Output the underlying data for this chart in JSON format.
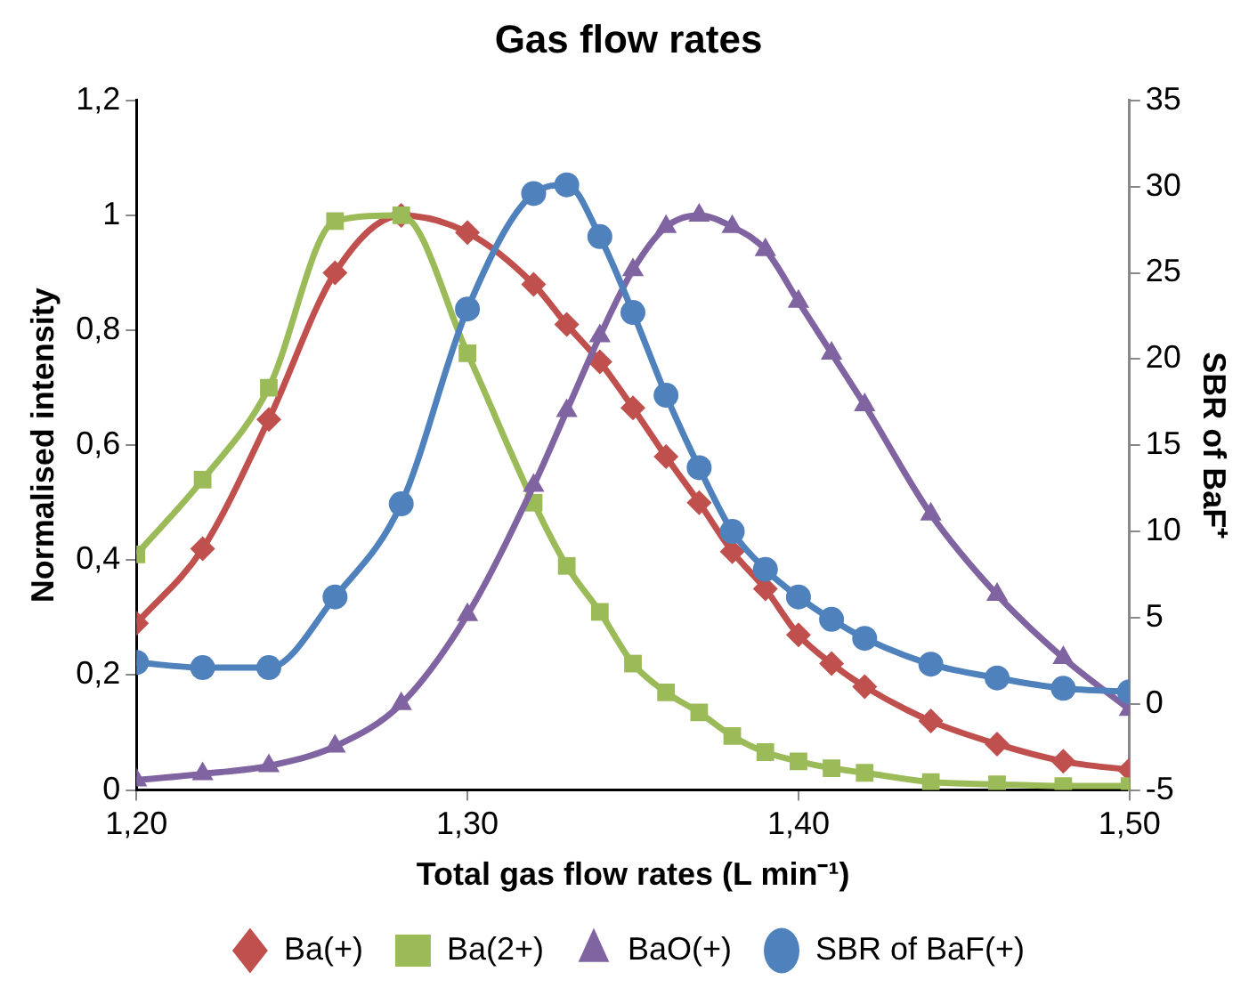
{
  "chart_data": {
    "type": "line",
    "title": "Gas flow rates",
    "xlabel": "Total gas flow rates (L min⁻¹)",
    "ylabel": "Normalised intensity",
    "y2label": "SBR of BaF⁺",
    "x": [
      1.2,
      1.22,
      1.24,
      1.26,
      1.28,
      1.3,
      1.32,
      1.33,
      1.34,
      1.35,
      1.36,
      1.37,
      1.38,
      1.39,
      1.4,
      1.41,
      1.42,
      1.44,
      1.46,
      1.48,
      1.5
    ],
    "series": [
      {
        "name": "Ba(+)",
        "color": "#c0504d",
        "marker": "diamond",
        "values": [
          0.29,
          0.42,
          0.645,
          0.9,
          1.0,
          0.97,
          0.88,
          0.81,
          0.745,
          0.665,
          0.58,
          0.5,
          0.415,
          0.35,
          0.27,
          0.22,
          0.18,
          0.12,
          0.08,
          0.05,
          0.035
        ]
      },
      {
        "name": "Ba(2+)",
        "color": "#9bbb59",
        "marker": "square",
        "values": [
          0.41,
          0.54,
          0.7,
          0.99,
          1.0,
          0.76,
          0.5,
          0.39,
          0.31,
          0.22,
          0.17,
          0.135,
          0.094,
          0.066,
          0.05,
          0.038,
          0.03,
          0.014,
          0.01,
          0.007,
          0.007
        ]
      },
      {
        "name": "BaO(+)",
        "color": "#8064a2",
        "marker": "triangle",
        "values": [
          0.017,
          0.028,
          0.042,
          0.076,
          0.15,
          0.305,
          0.53,
          0.66,
          0.79,
          0.905,
          0.98,
          1.0,
          0.98,
          0.94,
          0.85,
          0.76,
          0.67,
          0.48,
          0.34,
          0.23,
          0.14
        ]
      },
      {
        "name": "SBR of BaF(+)",
        "color": "#4f81bd",
        "marker": "circle",
        "axis": "y2",
        "values": [
          2.4,
          2.1,
          2.1,
          6.2,
          11.6,
          22.9,
          29.6,
          30.1,
          27.1,
          22.7,
          17.9,
          13.7,
          10.0,
          7.8,
          6.2,
          4.9,
          3.8,
          2.3,
          1.5,
          0.9,
          0.7
        ]
      }
    ],
    "xlim": [
      1.2,
      1.5
    ],
    "xticks": [
      {
        "value": 1.2,
        "label": "1,20"
      },
      {
        "value": 1.3,
        "label": "1,30"
      },
      {
        "value": 1.4,
        "label": "1,40"
      },
      {
        "value": 1.5,
        "label": "1,50"
      }
    ],
    "ylim": [
      0,
      1.2
    ],
    "yticks": [
      0,
      {
        "value": 0.2,
        "label": "0,2"
      },
      {
        "value": 0.4,
        "label": "0,4"
      },
      {
        "value": 0.6,
        "label": "0,6"
      },
      {
        "value": 0.8,
        "label": "0,8"
      },
      1,
      {
        "value": 1.2,
        "label": "1,2"
      }
    ],
    "y2lim": [
      -5,
      35
    ],
    "y2ticks": [
      -5,
      0,
      5,
      10,
      15,
      20,
      25,
      30,
      35
    ],
    "grid": false,
    "legend": "bottom",
    "line_style": "solid"
  }
}
